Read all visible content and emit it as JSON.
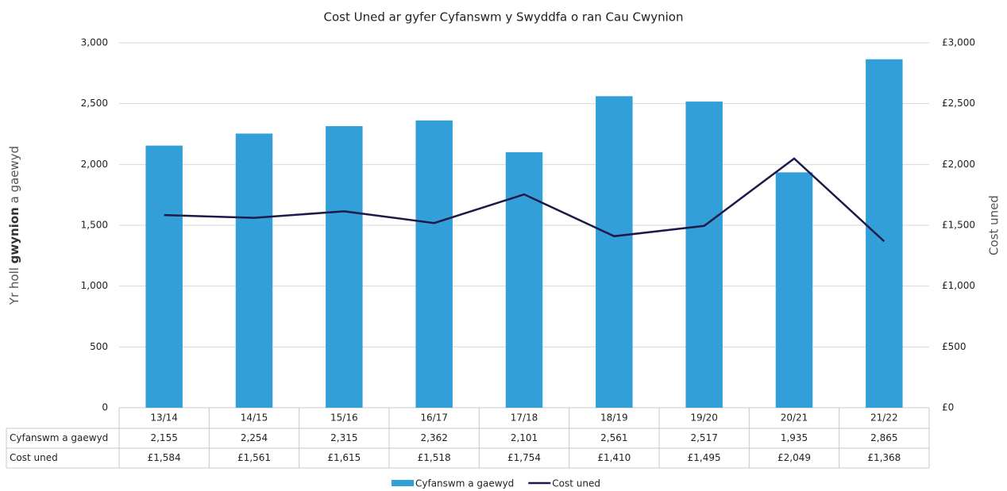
{
  "chart_data": {
    "type": "bar",
    "title": "Cost Uned ar gyfer Cyfanswm y Swyddfa o ran Cau Cwynion",
    "ylabel": [
      "Yr holl ",
      "gwynion",
      " a gaewyd"
    ],
    "y2label": "Cost uned",
    "categories": [
      "13/14",
      "14/15",
      "15/16",
      "16/17",
      "17/18",
      "18/19",
      "19/20",
      "20/21",
      "21/22"
    ],
    "series": [
      {
        "name": "Cyfanswm a gaewyd",
        "type": "bar",
        "color": "#339fd8",
        "values": [
          2155,
          2254,
          2315,
          2362,
          2101,
          2561,
          2517,
          1935,
          2865
        ],
        "value_labels": [
          "2,155",
          "2,254",
          "2,315",
          "2,362",
          "2,101",
          "2,561",
          "2,517",
          "1,935",
          "2,865"
        ]
      },
      {
        "name": "Cost uned",
        "type": "line",
        "axis": "y2",
        "color": "#1d1a4a",
        "values": [
          1584,
          1561,
          1615,
          1518,
          1754,
          1410,
          1495,
          2049,
          1368
        ],
        "value_labels": [
          "£1,584",
          "£1,561",
          "£1,615",
          "£1,518",
          "£1,754",
          "£1,410",
          "£1,495",
          "£2,049",
          "£1,368"
        ]
      }
    ],
    "ylim": [
      0,
      3000
    ],
    "yticks": [
      0,
      500,
      {
        "value": 1000,
        "label": "1,000"
      },
      {
        "value": 1500,
        "label": "1,500"
      },
      {
        "value": 2000,
        "label": "2,000"
      },
      {
        "value": 2500,
        "label": "2,500"
      },
      {
        "value": 3000,
        "label": "3,000"
      }
    ],
    "y2lim": [
      0,
      3000
    ],
    "y2ticks": [
      {
        "value": 0,
        "label": "£0"
      },
      {
        "value": 500,
        "label": "£500"
      },
      {
        "value": 1000,
        "label": "£1,000"
      },
      {
        "value": 1500,
        "label": "£1,500"
      },
      {
        "value": 2000,
        "label": "£2,000"
      },
      {
        "value": 2500,
        "label": "£2,500"
      },
      {
        "value": 3000,
        "label": "£3,000"
      }
    ],
    "grid": true,
    "legend": "bottom"
  }
}
